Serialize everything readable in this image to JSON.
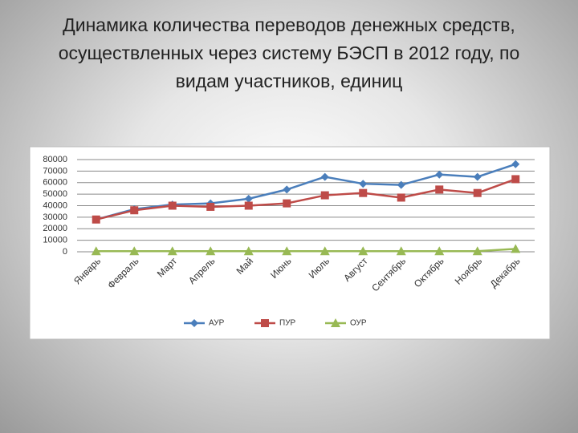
{
  "chart_data": {
    "type": "line",
    "title": "Динамика количества переводов денежных средств, осуществленных через систему БЭСП в 2012 году, по видам участников, единиц",
    "categories": [
      "Январь",
      "Февраль",
      "Март",
      "Апрель",
      "Май",
      "Июнь",
      "Июль",
      "Август",
      "Сентябрь",
      "Октябрь",
      "Ноябрь",
      "Декабрь"
    ],
    "series": [
      {
        "name": "АУР",
        "color": "#4a7ebb",
        "marker": "diamond",
        "values": [
          28000,
          37000,
          41000,
          42000,
          46000,
          54000,
          65000,
          59000,
          58000,
          67000,
          65000,
          76000
        ]
      },
      {
        "name": "ПУР",
        "color": "#be4b48",
        "marker": "square",
        "values": [
          28000,
          36000,
          40000,
          39000,
          40000,
          42000,
          49000,
          51000,
          47000,
          54000,
          51000,
          63000
        ]
      },
      {
        "name": "ОУР",
        "color": "#98b954",
        "marker": "triangle",
        "values": [
          500,
          500,
          500,
          500,
          500,
          500,
          500,
          500,
          500,
          500,
          500,
          2500
        ]
      }
    ],
    "ylim": [
      0,
      80000
    ],
    "yticks": [
      0,
      10000,
      20000,
      30000,
      40000,
      50000,
      60000,
      70000,
      80000
    ],
    "grid": true,
    "legend": "bottom"
  }
}
